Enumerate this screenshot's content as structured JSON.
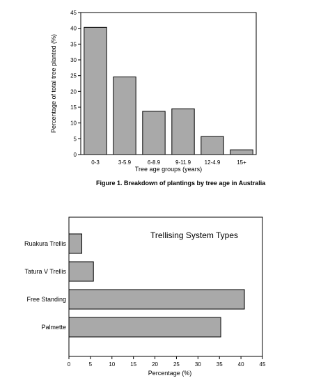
{
  "chart_data": [
    {
      "type": "bar",
      "orientation": "vertical",
      "categories": [
        "0-3",
        "3-5.9",
        "6-8.9",
        "9-11.9",
        "12-4.9",
        "15+"
      ],
      "values": [
        40.3,
        24.6,
        13.7,
        14.5,
        5.7,
        1.5
      ],
      "xlabel": "Tree age groups (years)",
      "ylabel": "Percentage of total tree planted (%)",
      "ylim": [
        0,
        45
      ],
      "yticks": [
        "0",
        "5",
        "10",
        "15",
        "20",
        "25",
        "30",
        "35",
        "40",
        "45"
      ],
      "caption": "Figure 1.   Breakdown of plantings by tree age in Australia",
      "bar_color": "#a9a9a9",
      "grid": false
    },
    {
      "type": "bar",
      "orientation": "horizontal",
      "categories": [
        "Ruakura Trellis",
        "Tatura V Trellis",
        "Free Standing",
        "Palmette"
      ],
      "values": [
        3,
        5.7,
        40.8,
        35.3
      ],
      "title": "Trellising System Types",
      "xlabel": "Percentage (%)",
      "xlim": [
        0,
        45
      ],
      "xticks": [
        "0",
        "5",
        "10",
        "15",
        "20",
        "25",
        "30",
        "35",
        "40",
        "45"
      ],
      "bar_color": "#a9a9a9",
      "grid": false
    }
  ]
}
